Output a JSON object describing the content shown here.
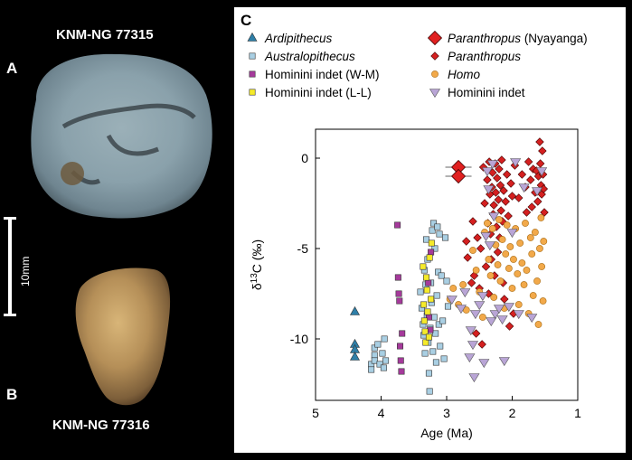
{
  "panels": {
    "A": "A",
    "B": "B",
    "C": "C"
  },
  "specimens": {
    "top": "KNM-NG 77315",
    "bottom": "KNM-NG 77316"
  },
  "scale_bar_label": "10mm",
  "legend": [
    {
      "label_italic": "Ardipithecus",
      "label_rest": "",
      "color": "#2e7fa8",
      "marker": "triangle-up"
    },
    {
      "label_italic": "Paranthropus",
      "label_rest": " (Nyayanga)",
      "color": "#e02020",
      "marker": "diamond-large"
    },
    {
      "label_italic": "Australopithecus",
      "label_rest": "",
      "color": "#a9cfe3",
      "marker": "square"
    },
    {
      "label_italic": "Paranthropus",
      "label_rest": "",
      "color": "#d42020",
      "marker": "diamond"
    },
    {
      "label_italic": "",
      "label_rest": "Hominini indet (W-M)",
      "color": "#a53a9b",
      "marker": "square"
    },
    {
      "label_italic": "Homo",
      "label_rest": "",
      "color": "#f2a94a",
      "marker": "circle"
    },
    {
      "label_italic": "",
      "label_rest": "Hominini indet (L-L)",
      "color": "#f5ea2a",
      "marker": "square"
    },
    {
      "label_italic": "",
      "label_rest": "Hominini indet",
      "color": "#b9a5d6",
      "marker": "triangle-down"
    }
  ],
  "chart_data": {
    "type": "scatter",
    "xlabel": "Age (Ma)",
    "ylabel": "δ13C (‰)",
    "xlim": [
      5,
      1
    ],
    "ylim": [
      -13.4,
      1.6
    ],
    "xticks": [
      5,
      4,
      3,
      2,
      1
    ],
    "yticks": [
      0,
      -5,
      -10
    ],
    "grid": false,
    "legend_position": "top",
    "series": [
      {
        "name": "Ardipithecus",
        "marker": "triangle-up",
        "color": "#2e7fa8",
        "points": [
          [
            4.4,
            -8.5
          ],
          [
            4.4,
            -10.3
          ],
          [
            4.4,
            -10.6
          ],
          [
            4.4,
            -11.0
          ]
        ]
      },
      {
        "name": "Australopithecus",
        "marker": "square",
        "color": "#a9cfe3",
        "points": [
          [
            4.15,
            -11.4
          ],
          [
            4.15,
            -11.7
          ],
          [
            4.1,
            -10.5
          ],
          [
            4.1,
            -10.9
          ],
          [
            4.1,
            -11.2
          ],
          [
            4.05,
            -10.3
          ],
          [
            4.02,
            -11.4
          ],
          [
            3.98,
            -10.8
          ],
          [
            3.96,
            -11.6
          ],
          [
            3.95,
            -10.0
          ],
          [
            3.93,
            -11.2
          ],
          [
            3.4,
            -7.4
          ],
          [
            3.38,
            -8.3
          ],
          [
            3.36,
            -9.2
          ],
          [
            3.35,
            -9.8
          ],
          [
            3.34,
            -6.2
          ],
          [
            3.33,
            -10.8
          ],
          [
            3.32,
            -7.0
          ],
          [
            3.31,
            -4.5
          ],
          [
            3.3,
            -8.7
          ],
          [
            3.29,
            -5.6
          ],
          [
            3.28,
            -10.2
          ],
          [
            3.27,
            -11.9
          ],
          [
            3.26,
            -12.9
          ],
          [
            3.25,
            -9.4
          ],
          [
            3.24,
            -6.9
          ],
          [
            3.23,
            -8.0
          ],
          [
            3.22,
            -4.0
          ],
          [
            3.21,
            -10.7
          ],
          [
            3.2,
            -3.6
          ],
          [
            3.19,
            -8.8
          ],
          [
            3.18,
            -5.0
          ],
          [
            3.17,
            -9.7
          ],
          [
            3.16,
            -11.3
          ],
          [
            3.15,
            -7.6
          ],
          [
            3.14,
            -3.8
          ],
          [
            3.13,
            -6.3
          ],
          [
            3.12,
            -9.2
          ],
          [
            3.11,
            -4.2
          ],
          [
            3.1,
            -10.4
          ],
          [
            3.08,
            -6.5
          ],
          [
            3.06,
            -9.0
          ],
          [
            3.04,
            -11.1
          ],
          [
            3.0,
            -6.8
          ],
          [
            2.98,
            -8.2
          ],
          [
            3.02,
            -4.4
          ]
        ]
      },
      {
        "name": "Hominini indet (W-M)",
        "marker": "square",
        "color": "#a53a9b",
        "points": [
          [
            3.75,
            -3.7
          ],
          [
            3.74,
            -6.6
          ],
          [
            3.73,
            -7.5
          ],
          [
            3.72,
            -7.9
          ],
          [
            3.71,
            -10.4
          ],
          [
            3.7,
            -11.2
          ],
          [
            3.69,
            -11.8
          ],
          [
            3.68,
            -9.7
          ],
          [
            3.28,
            -6.9
          ],
          [
            3.27,
            -8.8
          ],
          [
            3.25,
            -9.5
          ],
          [
            3.24,
            -5.2
          ]
        ]
      },
      {
        "name": "Hominini indet (L-L)",
        "marker": "square",
        "color": "#f5ea2a",
        "points": [
          [
            3.36,
            -6.0
          ],
          [
            3.35,
            -8.1
          ],
          [
            3.34,
            -9.0
          ],
          [
            3.33,
            -9.6
          ],
          [
            3.32,
            -10.2
          ],
          [
            3.31,
            -6.6
          ],
          [
            3.3,
            -7.3
          ],
          [
            3.29,
            -8.5
          ],
          [
            3.27,
            -9.9
          ],
          [
            3.26,
            -5.5
          ],
          [
            3.24,
            -7.8
          ],
          [
            3.23,
            -4.7
          ]
        ]
      },
      {
        "name": "Paranthropus (Nyayanga)",
        "marker": "diamond-large",
        "color": "#e02020",
        "points": [
          [
            2.82,
            -0.5
          ],
          [
            2.82,
            -1.0
          ]
        ],
        "error_x": 0.2
      },
      {
        "name": "Paranthropus",
        "marker": "diamond",
        "color": "#d42020",
        "points": [
          [
            2.7,
            -4.6
          ],
          [
            2.68,
            -5.5
          ],
          [
            2.62,
            -6.9
          ],
          [
            2.6,
            -3.5
          ],
          [
            2.58,
            -6.5
          ],
          [
            2.55,
            -9.7
          ],
          [
            2.53,
            -4.4
          ],
          [
            2.5,
            -7.2
          ],
          [
            2.48,
            -5.0
          ],
          [
            2.46,
            -10.3
          ],
          [
            2.44,
            -0.5
          ],
          [
            2.42,
            -2.5
          ],
          [
            2.4,
            -6.0
          ],
          [
            2.38,
            -1.2
          ],
          [
            2.37,
            -3.6
          ],
          [
            2.36,
            -7.5
          ],
          [
            2.35,
            -0.2
          ],
          [
            2.34,
            -2.0
          ],
          [
            2.33,
            -4.2
          ],
          [
            2.32,
            -5.6
          ],
          [
            2.31,
            -1.6
          ],
          [
            2.3,
            -0.8
          ],
          [
            2.29,
            -3.1
          ],
          [
            2.28,
            -2.6
          ],
          [
            2.27,
            -6.5
          ],
          [
            2.26,
            -0.3
          ],
          [
            2.25,
            -1.9
          ],
          [
            2.24,
            -3.8
          ],
          [
            2.23,
            -1.1
          ],
          [
            2.22,
            -5.2
          ],
          [
            2.21,
            -2.3
          ],
          [
            2.2,
            -0.6
          ],
          [
            2.19,
            -4.4
          ],
          [
            2.18,
            -1.5
          ],
          [
            2.17,
            -2.9
          ],
          [
            2.16,
            -0.1
          ],
          [
            2.15,
            -3.5
          ],
          [
            2.14,
            -6.9
          ],
          [
            2.13,
            -1.8
          ],
          [
            2.12,
            -7.8
          ],
          [
            2.1,
            -2.4
          ],
          [
            2.08,
            -0.9
          ],
          [
            2.06,
            -3.2
          ],
          [
            2.04,
            -9.3
          ],
          [
            2.02,
            -1.4
          ],
          [
            2.0,
            -2.1
          ],
          [
            1.98,
            -8.6
          ],
          [
            1.96,
            -0.4
          ],
          [
            1.9,
            -2.2
          ],
          [
            1.85,
            -0.9
          ],
          [
            1.8,
            -1.6
          ],
          [
            1.78,
            -3.0
          ],
          [
            1.75,
            -0.2
          ],
          [
            1.72,
            -1.2
          ],
          [
            1.7,
            -2.7
          ],
          [
            1.68,
            -0.6
          ],
          [
            1.65,
            -1.9
          ],
          [
            1.63,
            -0.7
          ],
          [
            1.61,
            -2.4
          ],
          [
            1.6,
            -1.0
          ],
          [
            1.58,
            0.9
          ],
          [
            1.57,
            -0.3
          ],
          [
            1.56,
            -1.5
          ],
          [
            1.55,
            -2.0
          ],
          [
            1.54,
            0.4
          ],
          [
            1.53,
            -0.9
          ],
          [
            1.52,
            -1.7
          ],
          [
            1.51,
            -3.0
          ]
        ]
      },
      {
        "name": "Homo",
        "marker": "circle",
        "color": "#f2a94a",
        "points": [
          [
            2.95,
            -7.8
          ],
          [
            2.9,
            -7.2
          ],
          [
            2.82,
            -8.1
          ],
          [
            2.75,
            -7.0
          ],
          [
            2.7,
            -8.4
          ],
          [
            2.6,
            -5.1
          ],
          [
            2.55,
            -6.2
          ],
          [
            2.5,
            -7.4
          ],
          [
            2.45,
            -8.8
          ],
          [
            2.42,
            -4.1
          ],
          [
            2.38,
            -3.6
          ],
          [
            2.36,
            -5.6
          ],
          [
            2.33,
            -6.5
          ],
          [
            2.3,
            -3.9
          ],
          [
            2.28,
            -7.7
          ],
          [
            2.25,
            -4.8
          ],
          [
            2.22,
            -5.9
          ],
          [
            2.2,
            -3.4
          ],
          [
            2.18,
            -6.8
          ],
          [
            2.15,
            -4.5
          ],
          [
            2.12,
            -8.3
          ],
          [
            2.1,
            -5.3
          ],
          [
            2.08,
            -3.7
          ],
          [
            2.05,
            -6.1
          ],
          [
            2.03,
            -4.9
          ],
          [
            2.0,
            -7.2
          ],
          [
            1.98,
            -5.6
          ],
          [
            1.95,
            -3.9
          ],
          [
            1.92,
            -6.4
          ],
          [
            1.9,
            -8.1
          ],
          [
            1.88,
            -4.7
          ],
          [
            1.85,
            -5.8
          ],
          [
            1.82,
            -7.0
          ],
          [
            1.8,
            -3.6
          ],
          [
            1.78,
            -6.2
          ],
          [
            1.75,
            -8.6
          ],
          [
            1.72,
            -4.4
          ],
          [
            1.7,
            -5.3
          ],
          [
            1.68,
            -7.6
          ],
          [
            1.65,
            -4.1
          ],
          [
            1.62,
            -6.8
          ],
          [
            1.6,
            -9.2
          ],
          [
            1.58,
            -5.0
          ],
          [
            1.56,
            -3.3
          ],
          [
            1.55,
            -6.0
          ],
          [
            1.53,
            -7.9
          ],
          [
            1.52,
            -4.6
          ]
        ]
      },
      {
        "name": "Hominini indet",
        "marker": "triangle-down",
        "color": "#b9a5d6",
        "points": [
          [
            2.92,
            -7.8
          ],
          [
            2.78,
            -8.3
          ],
          [
            2.72,
            -7.4
          ],
          [
            2.65,
            -11.0
          ],
          [
            2.63,
            -9.5
          ],
          [
            2.6,
            -10.3
          ],
          [
            2.58,
            -12.1
          ],
          [
            2.56,
            -8.6
          ],
          [
            2.5,
            -8.1
          ],
          [
            2.45,
            -7.6
          ],
          [
            2.43,
            -11.3
          ],
          [
            2.4,
            -4.3
          ],
          [
            2.38,
            -0.7
          ],
          [
            2.36,
            -1.7
          ],
          [
            2.34,
            -4.8
          ],
          [
            2.32,
            -9.0
          ],
          [
            2.3,
            -0.3
          ],
          [
            2.28,
            -3.2
          ],
          [
            2.26,
            -8.6
          ],
          [
            2.2,
            -8.3
          ],
          [
            2.15,
            -8.9
          ],
          [
            2.12,
            -11.2
          ],
          [
            2.05,
            -8.2
          ],
          [
            2.0,
            -4.1
          ],
          [
            1.95,
            -0.2
          ],
          [
            1.9,
            -8.6
          ],
          [
            1.82,
            -1.6
          ],
          [
            1.7,
            -8.8
          ],
          [
            1.62,
            -1.8
          ],
          [
            1.55,
            -0.7
          ]
        ]
      }
    ]
  }
}
